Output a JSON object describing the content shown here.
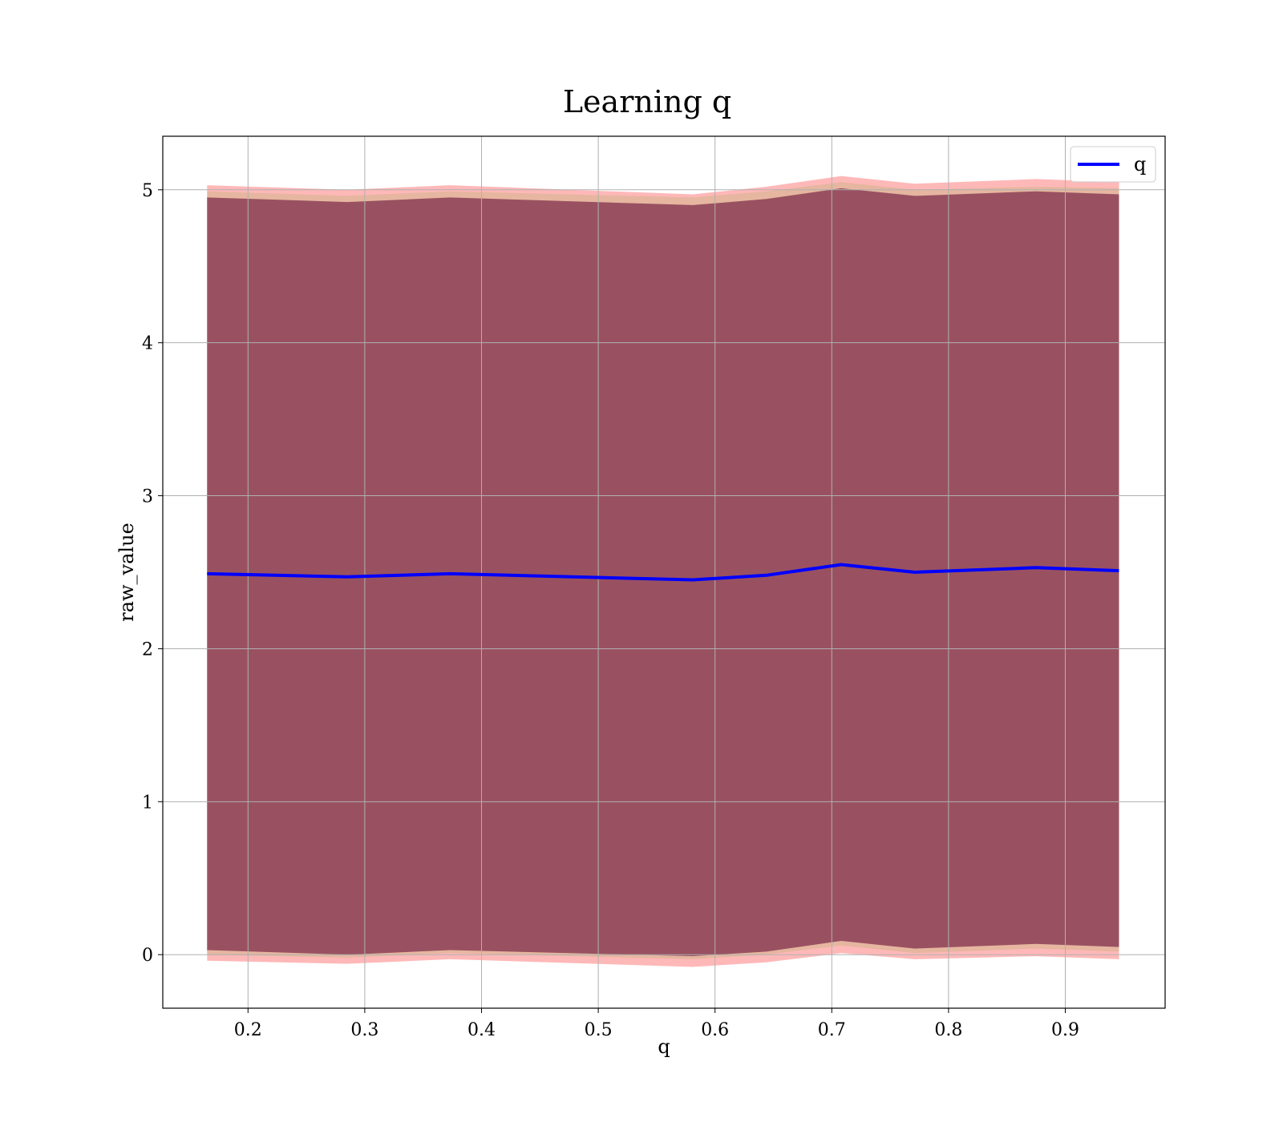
{
  "chart_data": {
    "type": "line",
    "title": "Learning q",
    "xlabel": "q",
    "ylabel": "raw_value",
    "xlim": [
      0.127,
      0.9855
    ],
    "ylim": [
      -0.35,
      5.35
    ],
    "xticks": [
      0.2,
      0.3,
      0.4,
      0.5,
      0.6,
      0.7,
      0.8,
      0.9
    ],
    "yticks": [
      0,
      1,
      2,
      3,
      4,
      5
    ],
    "grid": true,
    "legend_position": "top-right",
    "x": [
      0.165,
      0.285,
      0.373,
      0.581,
      0.644,
      0.708,
      0.771,
      0.875,
      0.946
    ],
    "series": [
      {
        "name": "q",
        "color": "#0000ff",
        "values": [
          2.49,
          2.47,
          2.49,
          2.45,
          2.48,
          2.55,
          2.5,
          2.53,
          2.51
        ]
      }
    ],
    "bands": [
      {
        "fill_color": "#ff0000",
        "fill_opacity": 0.28,
        "upper": [
          5.03,
          5.0,
          5.03,
          4.97,
          5.02,
          5.09,
          5.04,
          5.07,
          5.05
        ],
        "lower": [
          -0.04,
          -0.06,
          -0.03,
          -0.08,
          -0.05,
          0.01,
          -0.03,
          -0.01,
          -0.03
        ]
      },
      {
        "fill_color": "#d2b48c",
        "fill_opacity": 0.55,
        "upper": [
          4.99,
          4.96,
          4.99,
          4.95,
          4.99,
          5.05,
          5.0,
          5.02,
          5.01
        ],
        "lower": [
          0.0,
          -0.02,
          0.01,
          -0.03,
          0.0,
          0.06,
          0.01,
          0.04,
          0.02
        ]
      },
      {
        "fill_color": "#8b4056",
        "fill_opacity": 0.85,
        "upper": [
          4.95,
          4.92,
          4.95,
          4.9,
          4.94,
          5.01,
          4.96,
          4.99,
          4.97
        ],
        "lower": [
          0.03,
          0.0,
          0.03,
          -0.01,
          0.02,
          0.09,
          0.04,
          0.07,
          0.05
        ]
      }
    ]
  }
}
